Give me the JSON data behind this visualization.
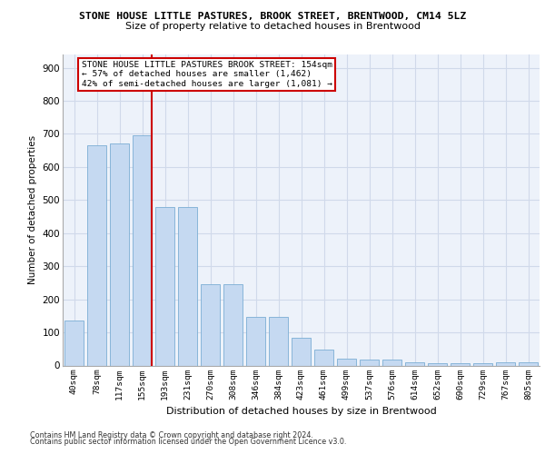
{
  "title_line1": "STONE HOUSE LITTLE PASTURES, BROOK STREET, BRENTWOOD, CM14 5LZ",
  "title_line2": "Size of property relative to detached houses in Brentwood",
  "xlabel": "Distribution of detached houses by size in Brentwood",
  "ylabel": "Number of detached properties",
  "footnote1": "Contains HM Land Registry data © Crown copyright and database right 2024.",
  "footnote2": "Contains public sector information licensed under the Open Government Licence v3.0.",
  "bar_labels": [
    "40sqm",
    "78sqm",
    "117sqm",
    "155sqm",
    "193sqm",
    "231sqm",
    "270sqm",
    "308sqm",
    "346sqm",
    "384sqm",
    "423sqm",
    "461sqm",
    "499sqm",
    "537sqm",
    "576sqm",
    "614sqm",
    "652sqm",
    "690sqm",
    "729sqm",
    "767sqm",
    "805sqm"
  ],
  "bar_values": [
    135,
    665,
    670,
    695,
    480,
    480,
    245,
    245,
    147,
    147,
    85,
    47,
    20,
    17,
    17,
    10,
    7,
    7,
    7,
    10,
    10
  ],
  "bar_color": "#c5d9f1",
  "bar_edge_color": "#7baed4",
  "grid_color": "#d0d9ea",
  "bg_color": "#edf2fa",
  "marker_label": "STONE HOUSE LITTLE PASTURES BROOK STREET: 154sqm",
  "marker_line1": "← 57% of detached houses are smaller (1,462)",
  "marker_line2": "42% of semi-detached houses are larger (1,081) →",
  "ylim": [
    0,
    940
  ],
  "yticks": [
    0,
    100,
    200,
    300,
    400,
    500,
    600,
    700,
    800,
    900
  ],
  "red_line_x": 3.42
}
